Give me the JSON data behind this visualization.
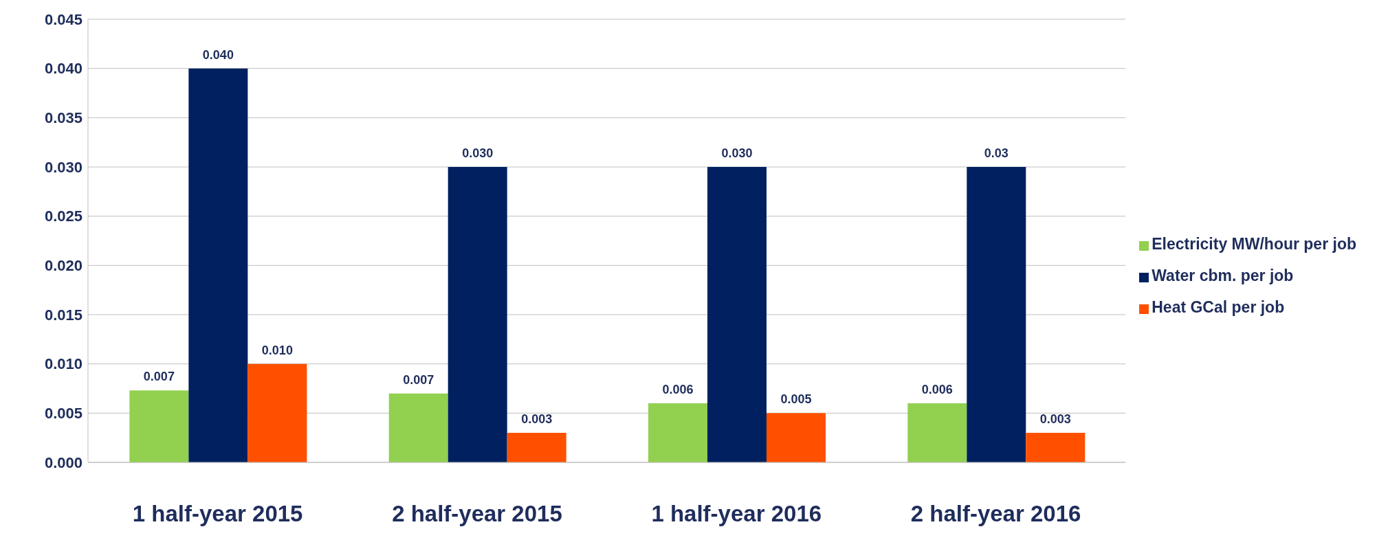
{
  "chart_data": {
    "type": "bar",
    "categories": [
      "1 half-year 2015",
      "2 half-year 2015",
      "1 half-year 2016",
      "2 half-year 2016"
    ],
    "series": [
      {
        "name": "Electricity MW/hour per job",
        "color": "#92d050",
        "values": [
          0.0073,
          0.007,
          0.006,
          0.006
        ],
        "value_labels": [
          "0.007",
          "0.007",
          "0.006",
          "0.006"
        ]
      },
      {
        "name": "Water cbm. per job",
        "color": "#002060",
        "values": [
          0.04,
          0.03,
          0.03,
          0.03
        ],
        "value_labels": [
          "0.040",
          "0.030",
          "0.030",
          "0.03"
        ]
      },
      {
        "name": "Heat GCal per job",
        "color": "#ff5000",
        "values": [
          0.01,
          0.003,
          0.005,
          0.003
        ],
        "value_labels": [
          "0.010",
          "0.003",
          "0.005",
          "0.003"
        ]
      }
    ],
    "ylim": [
      0,
      0.045
    ],
    "yticks": [
      {
        "value": 0,
        "label": "0.000"
      },
      {
        "value": 0.005,
        "label": "0.005"
      },
      {
        "value": 0.01,
        "label": "0.010"
      },
      {
        "value": 0.015,
        "label": "0.015"
      },
      {
        "value": 0.02,
        "label": "0.020"
      },
      {
        "value": 0.025,
        "label": "0.025"
      },
      {
        "value": 0.03,
        "label": "0.030"
      },
      {
        "value": 0.035,
        "label": "0.035"
      },
      {
        "value": 0.04,
        "label": "0.040"
      },
      {
        "value": 0.045,
        "label": "0.045"
      }
    ],
    "grid": "y",
    "legend": "right"
  }
}
